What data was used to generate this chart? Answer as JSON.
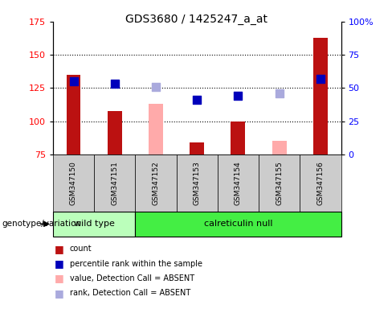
{
  "title": "GDS3680 / 1425247_a_at",
  "samples": [
    "GSM347150",
    "GSM347151",
    "GSM347152",
    "GSM347153",
    "GSM347154",
    "GSM347155",
    "GSM347156"
  ],
  "count_values": [
    135,
    108,
    null,
    84,
    100,
    null,
    163
  ],
  "count_absent_values": [
    null,
    null,
    113,
    null,
    null,
    85,
    null
  ],
  "rank_values": [
    130,
    128,
    null,
    116,
    119,
    null,
    132
  ],
  "rank_absent_values": [
    null,
    null,
    126,
    null,
    null,
    121,
    null
  ],
  "ylim": [
    75,
    175
  ],
  "yticks": [
    75,
    100,
    125,
    150,
    175
  ],
  "right_tick_positions": [
    75,
    100,
    125,
    150,
    175
  ],
  "right_yticks_labels": [
    "0",
    "25",
    "50",
    "75",
    "100%"
  ],
  "dotted_lines": [
    100,
    125,
    150
  ],
  "bar_width": 0.35,
  "dot_size": 55,
  "bar_color_present": "#bb1111",
  "bar_color_absent": "#ffaaaa",
  "dot_color_present": "#0000bb",
  "dot_color_absent": "#aaaadd",
  "wild_type_color": "#bbffbb",
  "calreticulin_color": "#44ee44",
  "sample_box_color": "#cccccc",
  "genotype_label": "genotype/variation",
  "legend_items": [
    "count",
    "percentile rank within the sample",
    "value, Detection Call = ABSENT",
    "rank, Detection Call = ABSENT"
  ],
  "group_spans": [
    [
      0,
      1,
      "wild type"
    ],
    [
      2,
      6,
      "calreticulin null"
    ]
  ]
}
